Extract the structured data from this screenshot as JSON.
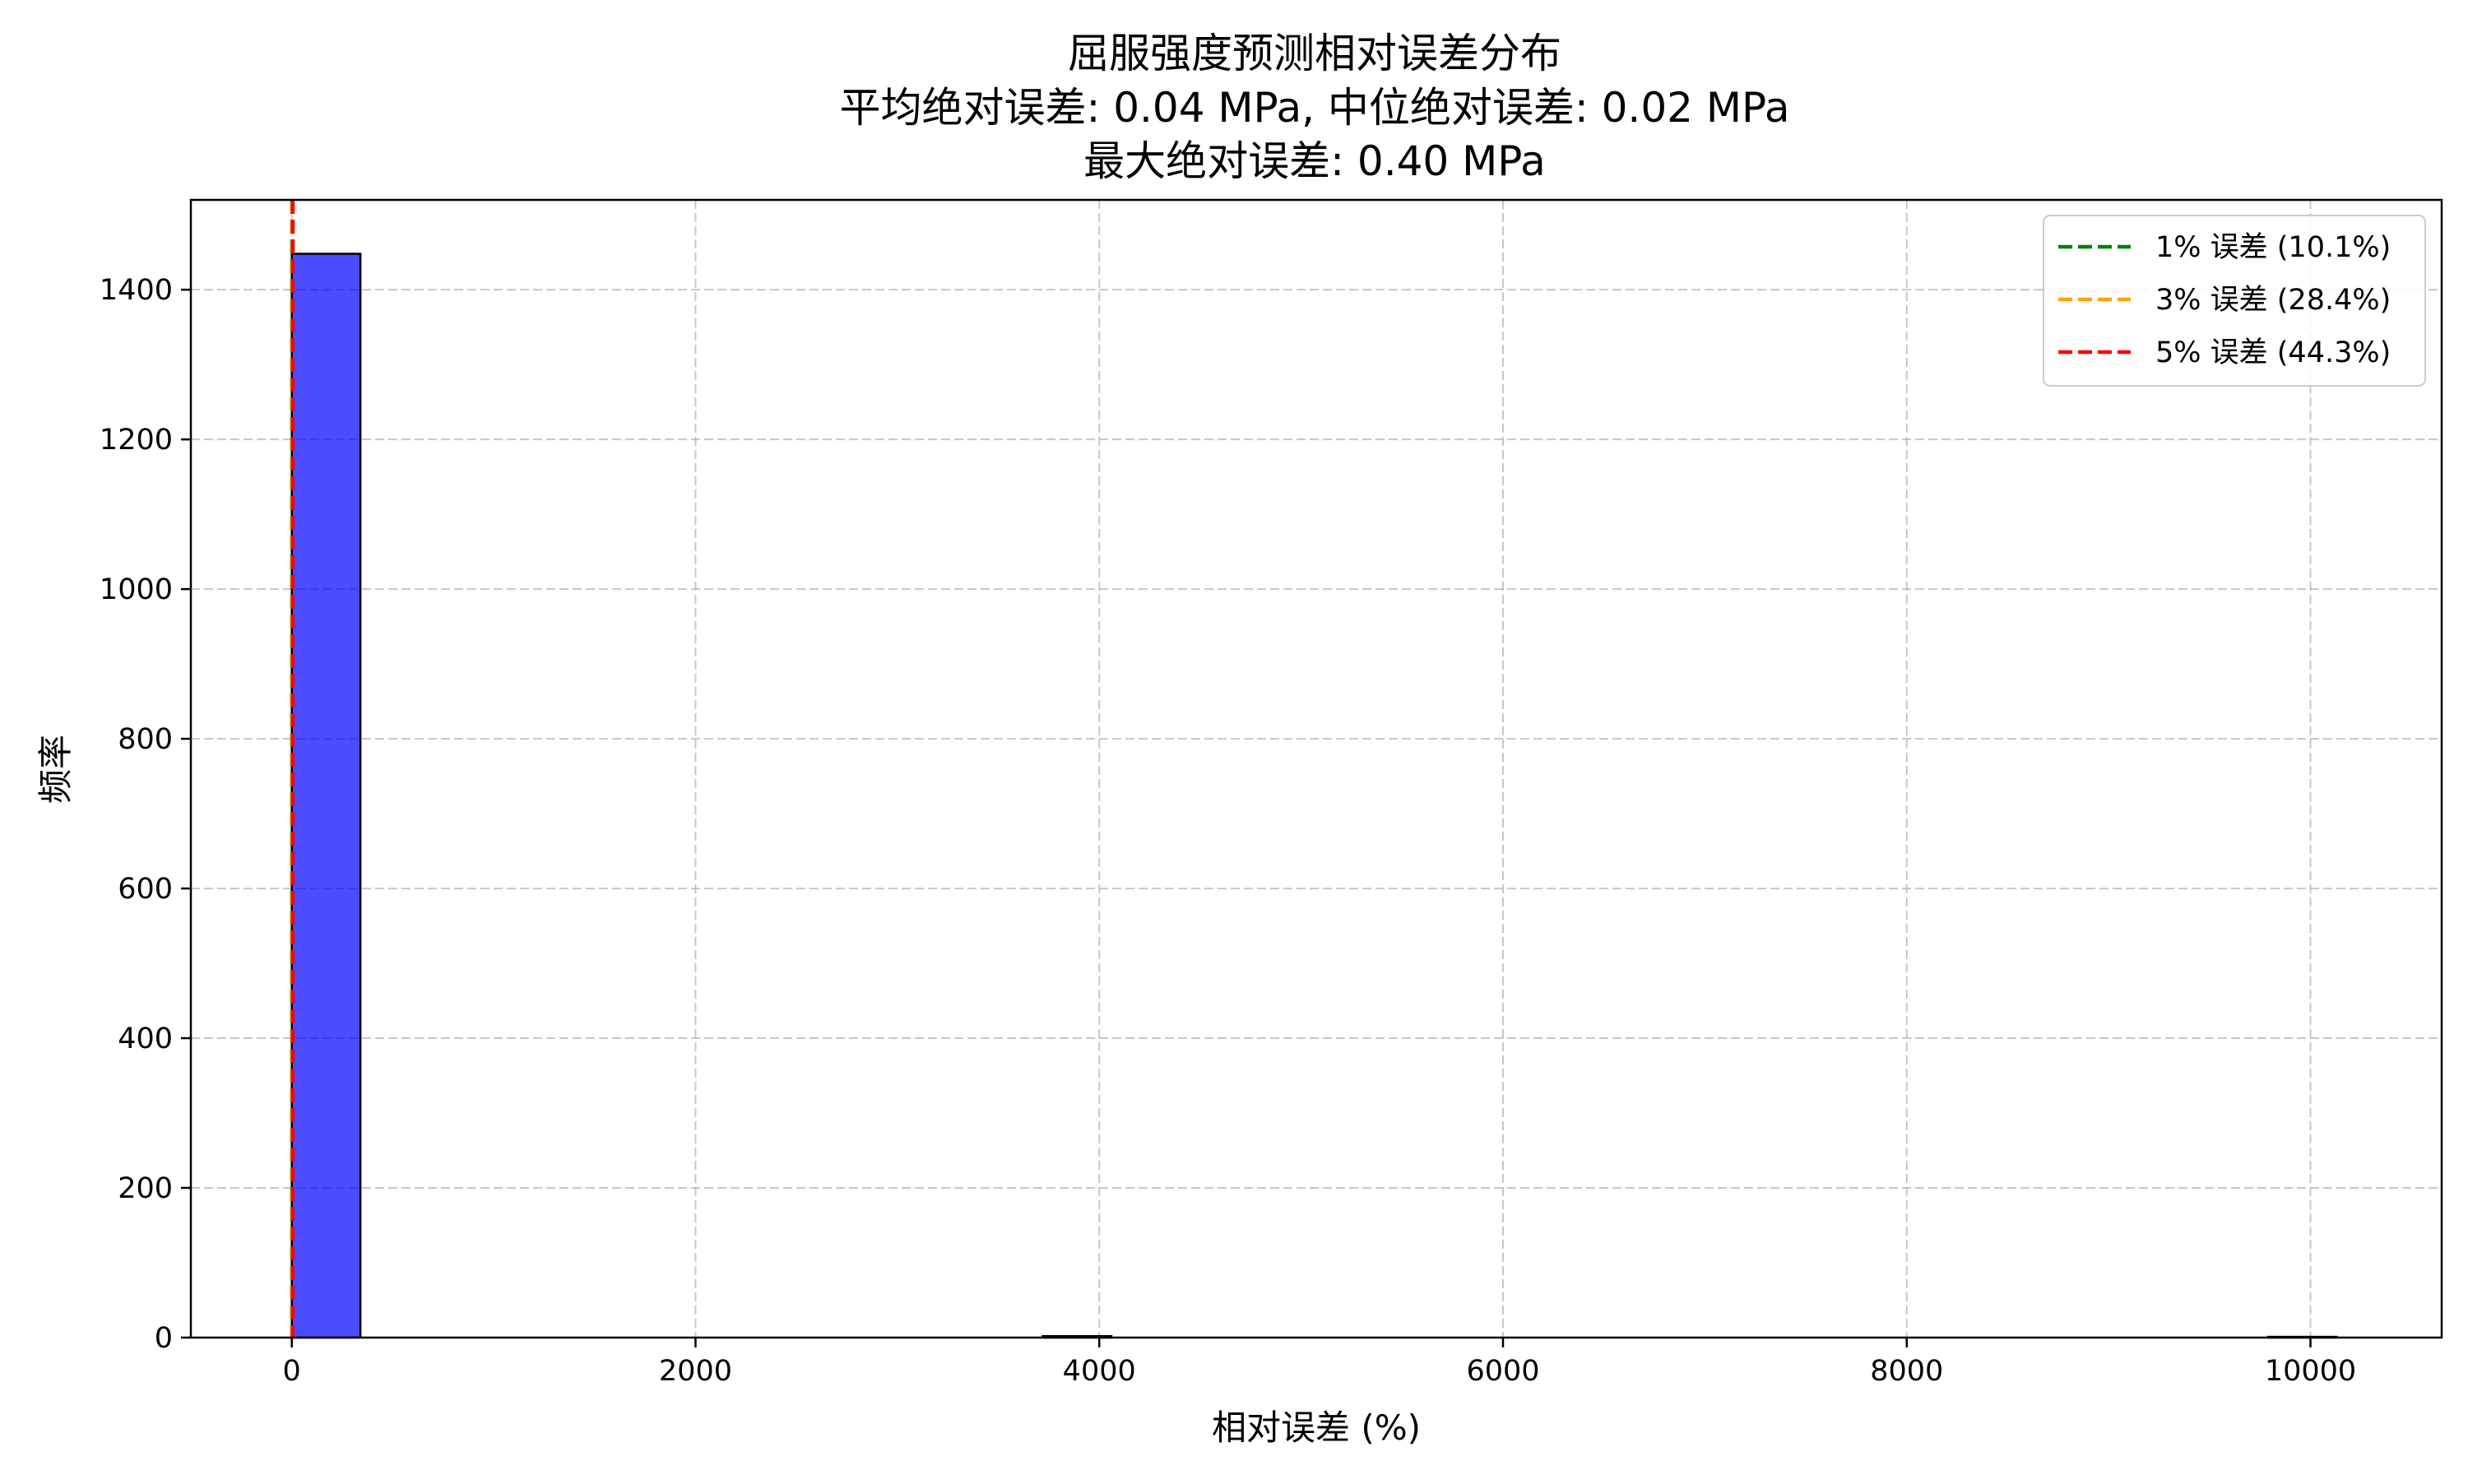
{
  "chart_data": {
    "type": "bar",
    "title": "屈服强度预测相对误差分布",
    "subtitle_lines": [
      "平均绝对误差: 0.04 MPa, 中位绝对误差: 0.02 MPa",
      "最大绝对误差: 0.40 MPa"
    ],
    "xlabel": "相对误差 (%)",
    "ylabel": "频率",
    "xlim": [
      -500,
      10650
    ],
    "ylim": [
      0,
      1520
    ],
    "xticks": [
      0,
      2000,
      4000,
      6000,
      8000,
      10000
    ],
    "yticks": [
      0,
      200,
      400,
      600,
      800,
      1000,
      1200,
      1400
    ],
    "grid": true,
    "bar_color": "#0000ff",
    "bars": [
      {
        "x0": 0,
        "x1": 340,
        "value": 1448
      },
      {
        "x0": 3720,
        "x1": 4060,
        "value": 2
      },
      {
        "x0": 9790,
        "x1": 10130,
        "value": 1
      }
    ],
    "vlines": [
      {
        "label": "1% 误差 (10.1%)",
        "x": 1,
        "color": "#008000"
      },
      {
        "label": "3% 误差 (28.4%)",
        "x": 3,
        "color": "#ffa500"
      },
      {
        "label": "5% 误差 (44.3%)",
        "x": 5,
        "color": "#ff0000"
      }
    ],
    "legend_position": "upper right"
  }
}
